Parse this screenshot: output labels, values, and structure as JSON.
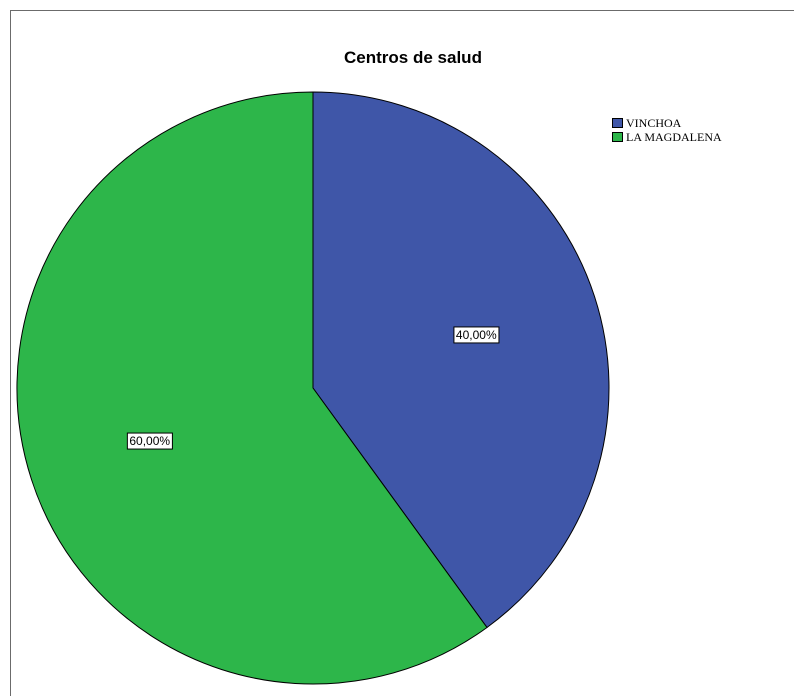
{
  "chart_data": {
    "type": "pie",
    "title": "Centros de salud",
    "slices": [
      {
        "name": "VINCHOA",
        "value": 40.0,
        "label": "40,00%",
        "color": "#3f56a8"
      },
      {
        "name": "LA MAGDALENA",
        "value": 60.0,
        "label": "60,00%",
        "color": "#2db64a"
      }
    ],
    "legend_position": "top-right"
  }
}
